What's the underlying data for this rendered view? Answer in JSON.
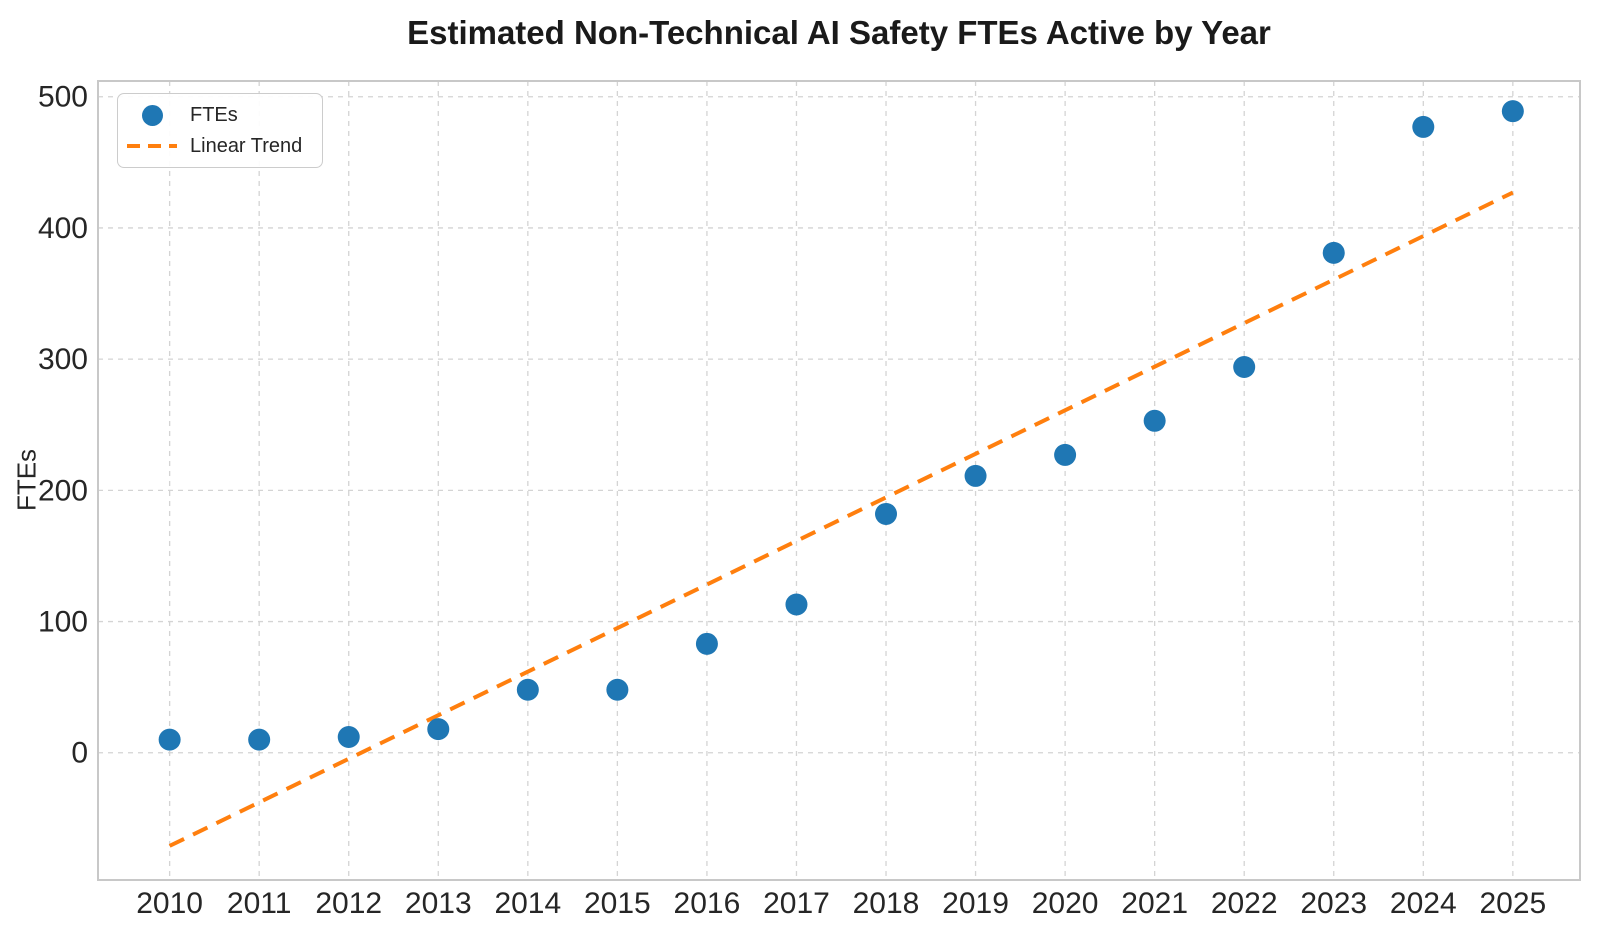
{
  "chart_data": {
    "type": "scatter",
    "title": "Estimated Non-Technical AI Safety FTEs Active by Year",
    "xlabel": "",
    "ylabel": "FTEs",
    "x": [
      2010,
      2011,
      2012,
      2013,
      2014,
      2015,
      2016,
      2017,
      2018,
      2019,
      2020,
      2021,
      2022,
      2023,
      2024,
      2025
    ],
    "series": [
      {
        "name": "FTEs",
        "type": "scatter",
        "color": "#1f77b4",
        "values": [
          10,
          10,
          12,
          18,
          48,
          48,
          83,
          113,
          182,
          211,
          227,
          253,
          294,
          381,
          477,
          489
        ]
      },
      {
        "name": "Linear Trend",
        "type": "line",
        "line_style": "dashed",
        "color": "#ff7f0e",
        "x": [
          2010,
          2025
        ],
        "values": [
          -71,
          427
        ]
      }
    ],
    "xticks": [
      2010,
      2011,
      2012,
      2013,
      2014,
      2015,
      2016,
      2017,
      2018,
      2019,
      2020,
      2021,
      2022,
      2023,
      2024,
      2025
    ],
    "yticks": [
      0,
      100,
      200,
      300,
      400,
      500
    ],
    "xlim": [
      2009.2,
      2025.75
    ],
    "ylim": [
      -97,
      512
    ],
    "grid": true,
    "grid_style": "dashed",
    "legend_position": "upper left",
    "colors": {
      "points": "#1f77b4",
      "trend": "#ff7f0e",
      "grid": "#d4d4d4",
      "frame": "#c8c8c8",
      "text": "#262626",
      "background": "#ffffff"
    }
  }
}
